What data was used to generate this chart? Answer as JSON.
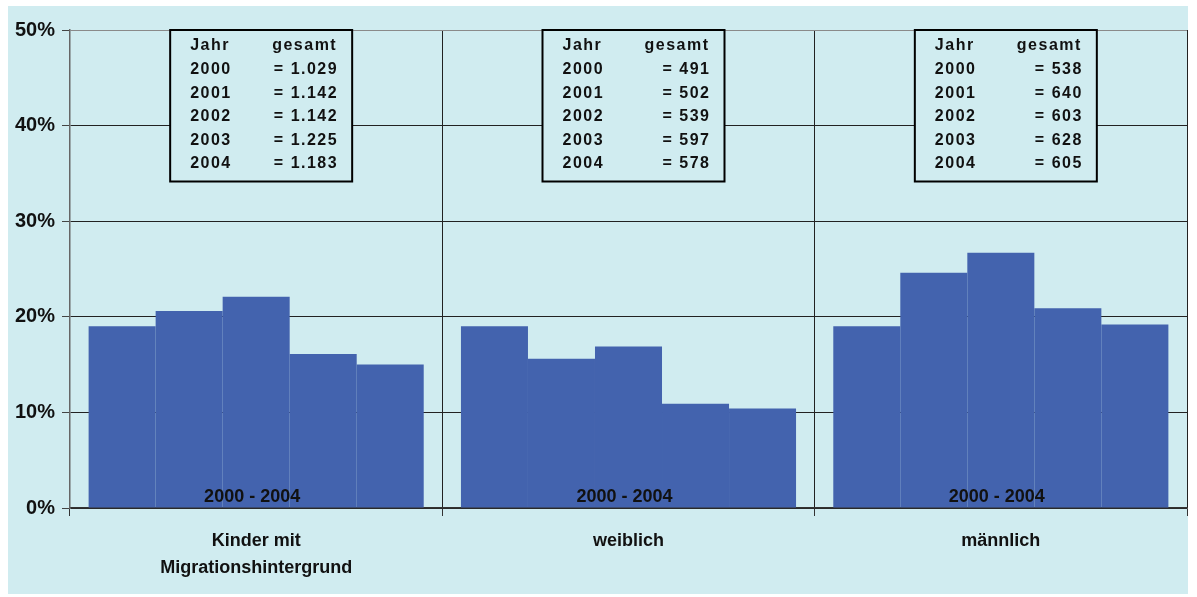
{
  "chart_data": {
    "type": "bar",
    "categories": [
      "Kinder mit Migrationshintergrund",
      "weiblich",
      "männlich"
    ],
    "series": [
      {
        "color": "#4363ae",
        "values": [
          19.0,
          19.0,
          19.0
        ]
      },
      {
        "color": "#4363ae",
        "values": [
          20.6,
          15.6,
          24.6
        ]
      },
      {
        "color": "#4363ae",
        "values": [
          22.1,
          16.9,
          26.7
        ]
      },
      {
        "color": "#4363ae",
        "values": [
          16.1,
          10.9,
          20.9
        ]
      },
      {
        "color": "#4363ae",
        "values": [
          15.0,
          10.4,
          19.2
        ]
      }
    ],
    "ylim": [
      0,
      50
    ],
    "yticks": [
      {
        "value": 0,
        "label": "0%"
      },
      {
        "value": 10,
        "label": "10%"
      },
      {
        "value": 20,
        "label": "20%"
      },
      {
        "value": 30,
        "label": "30%"
      },
      {
        "value": 40,
        "label": "40%"
      },
      {
        "value": 50,
        "label": "50%"
      }
    ],
    "grid": true,
    "annotations": [
      "Jahr gesamt\n2000 = 1.029\n2001 = 1.142\n2002 = 1.142\n2003 = 1.225\n2004 = 1.183",
      "Jahr gesamt\n2000 = 491\n2001 = 502\n2002 = 539\n2003 = 597\n2004 = 578",
      "Jahr gesamt\n2000 = 538\n2001 = 640\n2002 = 603\n2003 = 628\n2004 = 605",
      "2000 - 2004",
      "2000 - 2004",
      "2000 - 2004"
    ]
  }
}
